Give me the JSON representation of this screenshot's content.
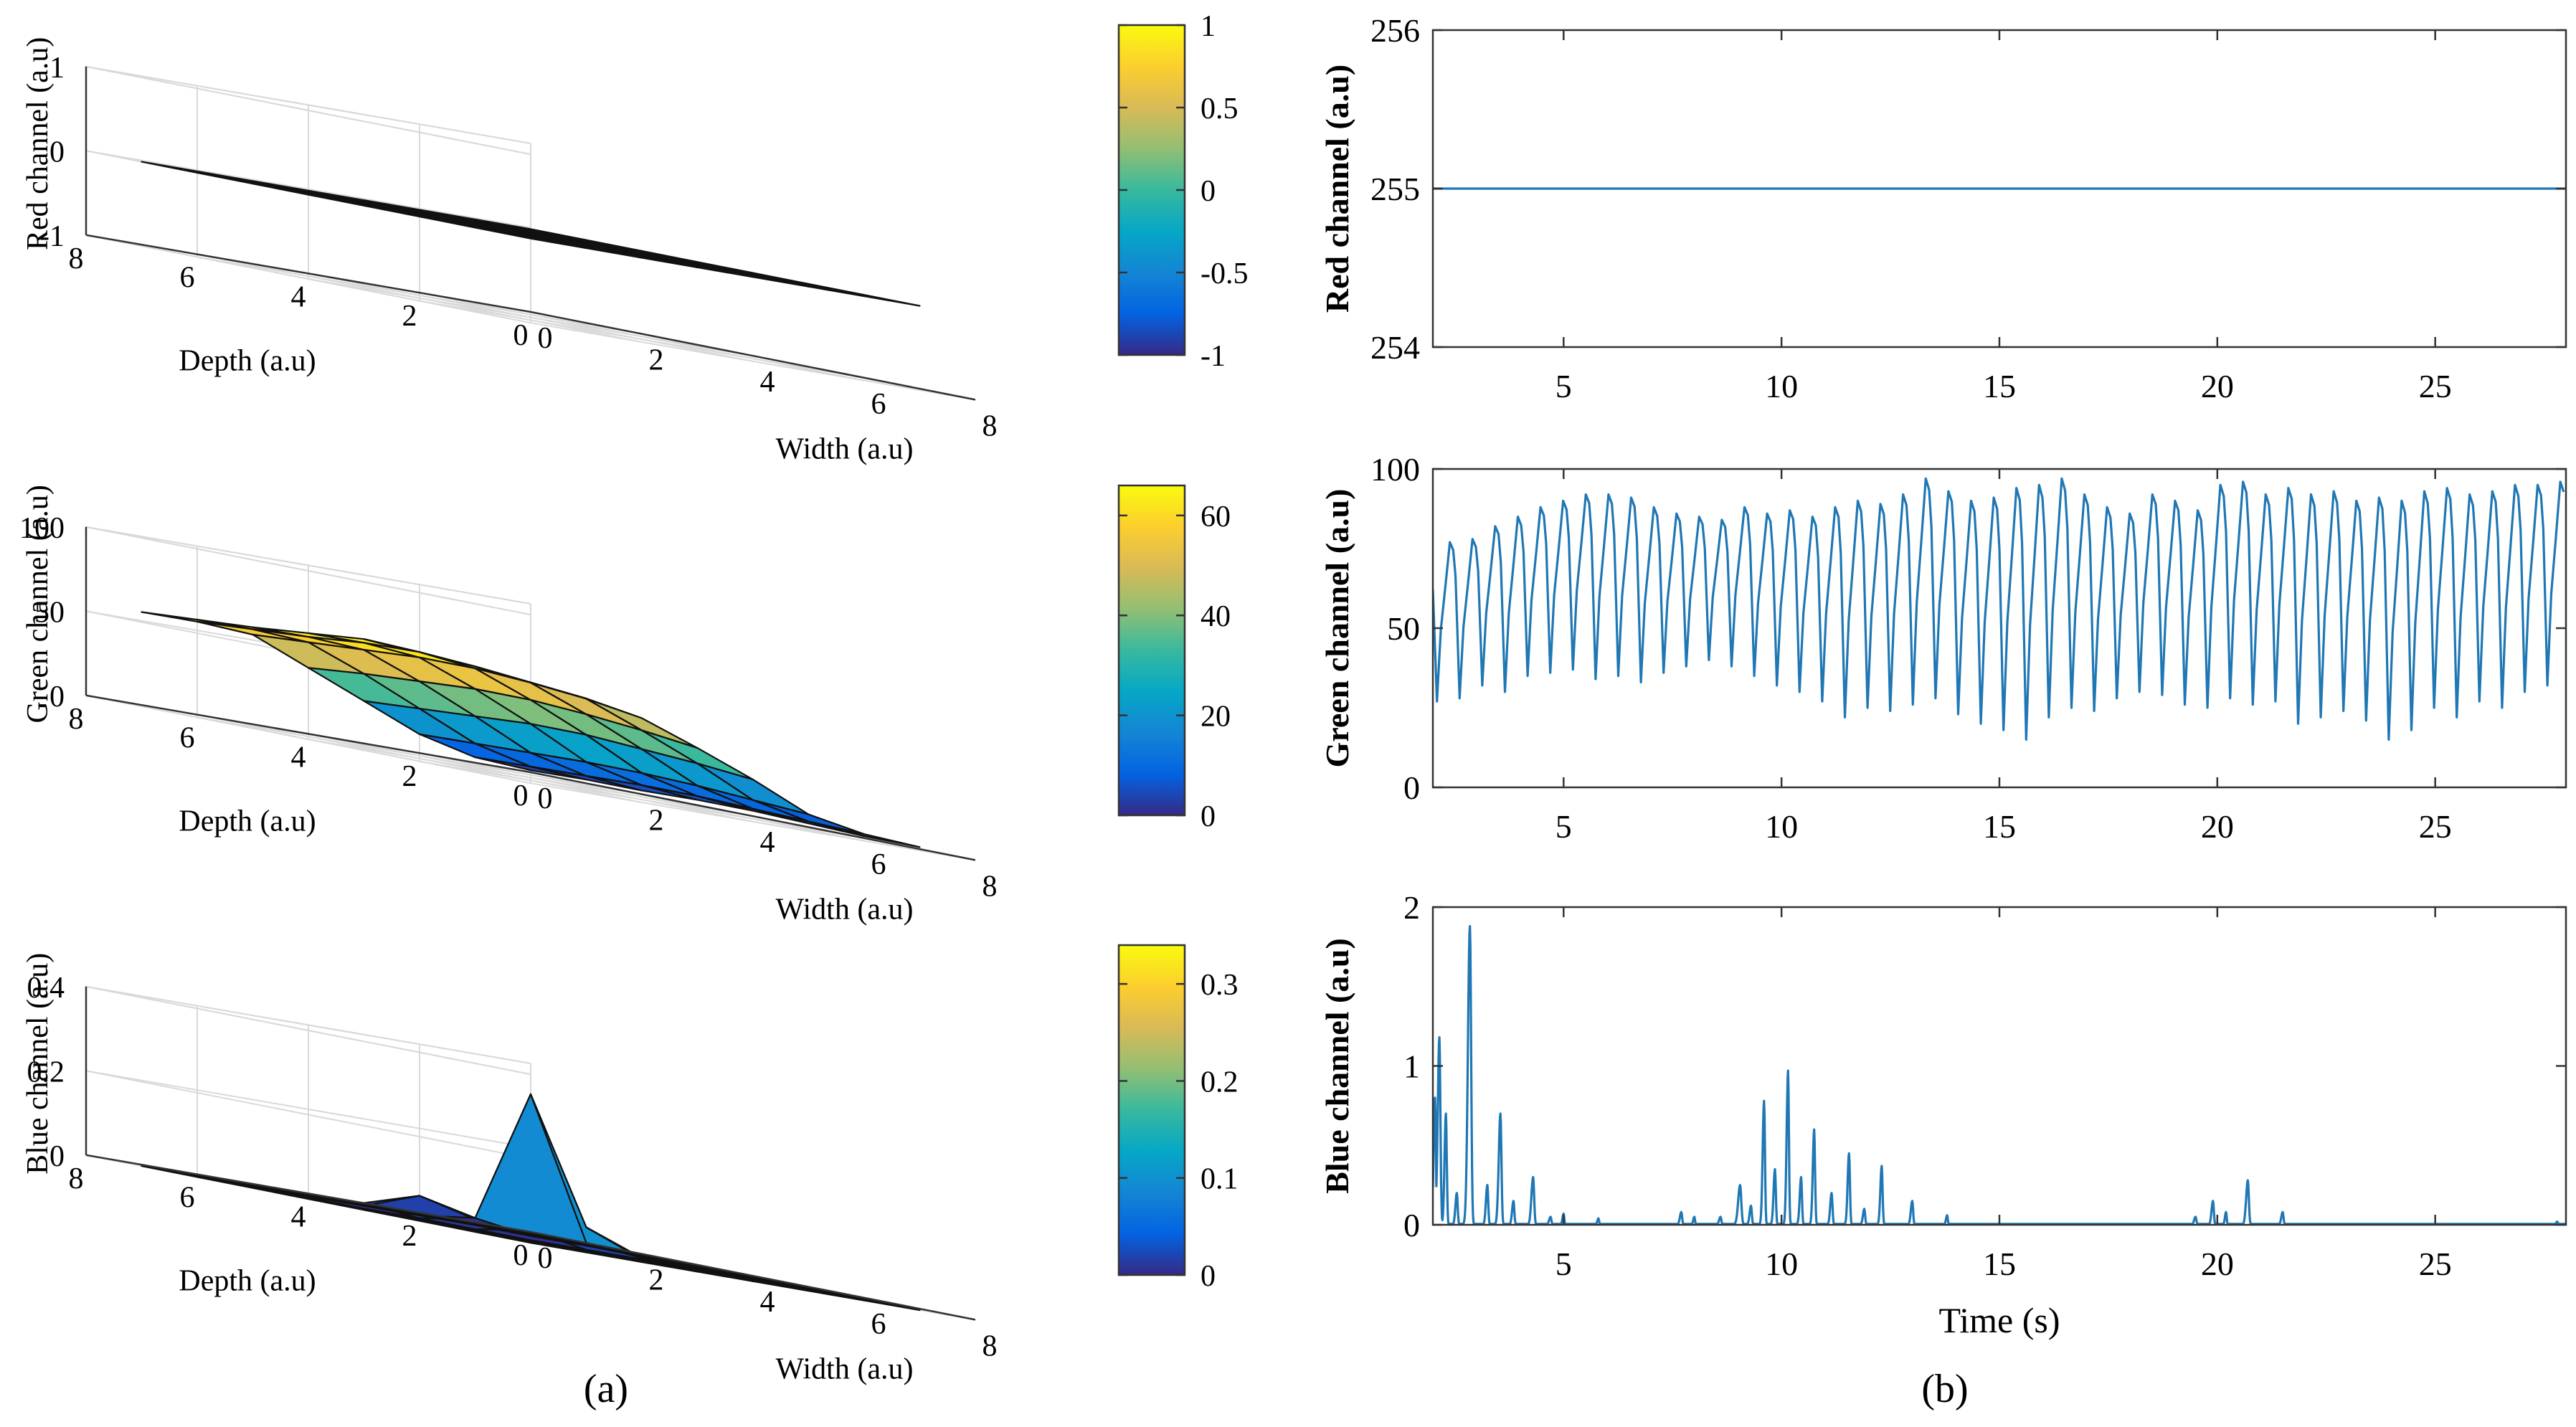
{
  "colors": {
    "line": "#1f77b4",
    "axis": "#000000",
    "grid": "#d9d9d9",
    "parula": [
      "#352a87",
      "#0363e1",
      "#1485d4",
      "#06a7c6",
      "#38b99e",
      "#92bf73",
      "#d9ba56",
      "#fcce2e",
      "#f9fb0e"
    ]
  },
  "panel_labels": {
    "a": "(a)",
    "b": "(b)"
  },
  "chart_data": [
    {
      "id": "red-surface",
      "type": "surface3d",
      "zlabel": "Red channel (a.u)",
      "xlabel": "Width (a.u)",
      "ylabel": "Depth (a.u)",
      "zlim": [
        -1,
        1
      ],
      "zticks": [
        -1,
        0,
        1
      ],
      "ztick_labels": [
        "-1",
        "0",
        "1"
      ],
      "xlim": [
        0,
        8
      ],
      "xticks": [
        0,
        2,
        4,
        6,
        8
      ],
      "xtick_labels": [
        "0",
        "2",
        "4",
        "6",
        "8"
      ],
      "ylim": [
        0,
        8
      ],
      "yticks": [
        0,
        2,
        4,
        6,
        8
      ],
      "ytick_labels": [
        "0",
        "2",
        "4",
        "6",
        "8"
      ],
      "surface_extent": [
        1,
        8
      ],
      "colorbar": {
        "range": [
          -1,
          1
        ],
        "ticks": [
          -1,
          -0.5,
          0,
          0.5,
          1
        ],
        "tick_labels": [
          "-1",
          "-0.5",
          "0",
          "0.5",
          "1"
        ]
      },
      "z": [
        [
          0,
          0,
          0,
          0,
          0,
          0,
          0,
          0
        ],
        [
          0,
          0,
          0,
          0,
          0,
          0,
          0,
          0
        ],
        [
          0,
          0,
          0,
          0,
          0,
          0,
          0,
          0
        ],
        [
          0,
          0,
          0,
          0,
          0,
          0,
          0,
          0
        ],
        [
          0,
          0,
          0,
          0,
          0,
          0,
          0,
          0
        ],
        [
          0,
          0,
          0,
          0,
          0,
          0,
          0,
          0
        ],
        [
          0,
          0,
          0,
          0,
          0,
          0,
          0,
          0
        ],
        [
          0,
          0,
          0,
          0,
          0,
          0,
          0,
          0
        ]
      ]
    },
    {
      "id": "green-surface",
      "type": "surface3d",
      "zlabel": "Green channel (a.u)",
      "xlabel": "Width (a.u)",
      "ylabel": "Depth (a.u)",
      "zlim": [
        0,
        100
      ],
      "zticks": [
        0,
        50,
        100
      ],
      "ztick_labels": [
        "0",
        "50",
        "100"
      ],
      "xlim": [
        0,
        8
      ],
      "xticks": [
        0,
        2,
        4,
        6,
        8
      ],
      "xtick_labels": [
        "0",
        "2",
        "4",
        "6",
        "8"
      ],
      "ylim": [
        0,
        8
      ],
      "yticks": [
        0,
        2,
        4,
        6,
        8
      ],
      "ytick_labels": [
        "0",
        "2",
        "4",
        "6",
        "8"
      ],
      "surface_extent": [
        1,
        8
      ],
      "colorbar": {
        "range": [
          0,
          66
        ],
        "ticks": [
          0,
          20,
          40,
          60
        ],
        "tick_labels": [
          "0",
          "20",
          "40",
          "60"
        ]
      },
      "z": [
        [
          2,
          3,
          3,
          4,
          4,
          3,
          2,
          2
        ],
        [
          4,
          5,
          6,
          7,
          7,
          6,
          5,
          4
        ],
        [
          12,
          13,
          14,
          15,
          15,
          14,
          12,
          10
        ],
        [
          26,
          28,
          30,
          32,
          32,
          30,
          28,
          25
        ],
        [
          40,
          43,
          45,
          47,
          47,
          45,
          42,
          38
        ],
        [
          54,
          56,
          58,
          60,
          60,
          58,
          55,
          50
        ],
        [
          56,
          58,
          60,
          63,
          64,
          62,
          59,
          56
        ],
        [
          56,
          58,
          60,
          63,
          66,
          64,
          60,
          58
        ]
      ]
    },
    {
      "id": "blue-surface",
      "type": "surface3d",
      "zlabel": "Blue channel (a.u)",
      "xlabel": "Width (a.u)",
      "ylabel": "Depth (a.u)",
      "zlim": [
        0,
        0.4
      ],
      "zticks": [
        0,
        0.2,
        0.4
      ],
      "ztick_labels": [
        "0",
        "0.2",
        "0.4"
      ],
      "xlim": [
        0,
        8
      ],
      "xticks": [
        0,
        2,
        4,
        6,
        8
      ],
      "xtick_labels": [
        "0",
        "2",
        "4",
        "6",
        "8"
      ],
      "ylim": [
        0,
        8
      ],
      "yticks": [
        0,
        2,
        4,
        6,
        8
      ],
      "ytick_labels": [
        "0",
        "2",
        "4",
        "6",
        "8"
      ],
      "surface_extent": [
        1,
        8
      ],
      "colorbar": {
        "range": [
          0,
          0.34
        ],
        "ticks": [
          0,
          0.1,
          0.2,
          0.3
        ],
        "tick_labels": [
          "0",
          "0.1",
          "0.2",
          "0.3"
        ]
      },
      "z": [
        [
          0,
          0,
          0,
          0,
          0,
          0,
          0,
          0
        ],
        [
          0,
          0,
          0,
          0,
          0,
          0,
          0,
          0
        ],
        [
          0,
          0,
          0,
          0.01,
          0,
          0,
          0,
          0
        ],
        [
          0,
          0,
          0.02,
          0.34,
          0.05,
          0,
          0,
          0
        ],
        [
          0,
          0,
          0.05,
          0.02,
          0.02,
          0,
          0,
          0
        ],
        [
          0,
          0,
          0.01,
          0,
          0,
          0,
          0,
          0
        ],
        [
          0,
          0,
          0,
          0,
          0,
          0,
          0,
          0
        ],
        [
          0,
          0,
          0,
          0,
          0,
          0,
          0,
          0
        ]
      ]
    },
    {
      "id": "red-time",
      "type": "line",
      "ylabel": "Red channel (a.u)",
      "xlabel": "",
      "xlim": [
        2,
        28
      ],
      "ylim": [
        254,
        256
      ],
      "xticks": [
        5,
        10,
        15,
        20,
        25
      ],
      "xtick_labels": [
        "5",
        "10",
        "15",
        "20",
        "25"
      ],
      "yticks": [
        254,
        255,
        256
      ],
      "ytick_labels": [
        "254",
        "255",
        "256"
      ],
      "series": [
        {
          "name": "red",
          "x": [
            2,
            28
          ],
          "y": [
            255,
            255
          ]
        }
      ]
    },
    {
      "id": "green-time",
      "type": "line",
      "ylabel": "Green channel (a.u)",
      "xlabel": "",
      "xlim": [
        2,
        28
      ],
      "ylim": [
        0,
        100
      ],
      "xticks": [
        5,
        10,
        15,
        20,
        25
      ],
      "xtick_labels": [
        "5",
        "10",
        "15",
        "20",
        "25"
      ],
      "yticks": [
        0,
        50,
        100
      ],
      "ytick_labels": [
        "0",
        "50",
        "100"
      ],
      "series": [
        {
          "name": "green",
          "start": 2,
          "period": 0.52,
          "peaks": [
            77,
            78,
            82,
            85,
            88,
            90,
            92,
            92,
            91,
            88,
            86,
            85,
            84,
            88,
            86,
            87,
            85,
            88,
            90,
            89,
            92,
            97,
            93,
            90,
            91,
            94,
            95,
            97,
            92,
            88,
            86,
            92,
            90,
            87,
            95,
            96,
            92,
            94,
            92,
            93,
            90,
            91,
            90,
            93,
            94,
            92,
            93,
            95,
            95,
            96
          ],
          "troughs": [
            27,
            28,
            32,
            30,
            35,
            36,
            37,
            34,
            35,
            33,
            36,
            38,
            40,
            38,
            35,
            32,
            30,
            27,
            22,
            25,
            24,
            26,
            28,
            23,
            20,
            18,
            15,
            22,
            25,
            24,
            28,
            30,
            29,
            26,
            25,
            28,
            26,
            27,
            20,
            22,
            24,
            21,
            15,
            18,
            25,
            22,
            27,
            25,
            30,
            32
          ]
        }
      ]
    },
    {
      "id": "blue-time",
      "type": "line",
      "ylabel": "Blue channel (a.u)",
      "xlabel": "Time (s)",
      "xlim": [
        2,
        28
      ],
      "ylim": [
        0,
        2
      ],
      "xticks": [
        5,
        10,
        15,
        20,
        25
      ],
      "xtick_labels": [
        "5",
        "10",
        "15",
        "20",
        "25"
      ],
      "yticks": [
        0,
        1,
        2
      ],
      "ytick_labels": [
        "0",
        "1",
        "2"
      ],
      "series": [
        {
          "name": "blue",
          "baseline": 0.005,
          "spikes": [
            [
              2.05,
              0.8,
              0.05
            ],
            [
              2.15,
              1.18,
              0.06
            ],
            [
              2.3,
              0.7,
              0.05
            ],
            [
              2.55,
              0.2,
              0.05
            ],
            [
              2.85,
              1.88,
              0.07
            ],
            [
              3.25,
              0.25,
              0.05
            ],
            [
              3.55,
              0.7,
              0.06
            ],
            [
              3.85,
              0.15,
              0.05
            ],
            [
              4.3,
              0.3,
              0.06
            ],
            [
              4.7,
              0.05,
              0.05
            ],
            [
              5.0,
              0.07,
              0.04
            ],
            [
              5.8,
              0.04,
              0.04
            ],
            [
              7.7,
              0.08,
              0.05
            ],
            [
              8.0,
              0.05,
              0.04
            ],
            [
              8.6,
              0.05,
              0.05
            ],
            [
              9.05,
              0.25,
              0.07
            ],
            [
              9.3,
              0.12,
              0.05
            ],
            [
              9.6,
              0.78,
              0.05
            ],
            [
              9.85,
              0.35,
              0.05
            ],
            [
              10.15,
              0.97,
              0.05
            ],
            [
              10.45,
              0.3,
              0.05
            ],
            [
              10.75,
              0.6,
              0.05
            ],
            [
              11.15,
              0.2,
              0.05
            ],
            [
              11.55,
              0.45,
              0.05
            ],
            [
              11.9,
              0.1,
              0.05
            ],
            [
              12.3,
              0.37,
              0.05
            ],
            [
              13.0,
              0.15,
              0.05
            ],
            [
              13.8,
              0.06,
              0.04
            ],
            [
              19.5,
              0.05,
              0.05
            ],
            [
              19.9,
              0.15,
              0.05
            ],
            [
              20.2,
              0.08,
              0.04
            ],
            [
              20.7,
              0.28,
              0.06
            ],
            [
              21.5,
              0.08,
              0.05
            ],
            [
              27.8,
              0.02,
              0.04
            ]
          ]
        }
      ]
    }
  ]
}
